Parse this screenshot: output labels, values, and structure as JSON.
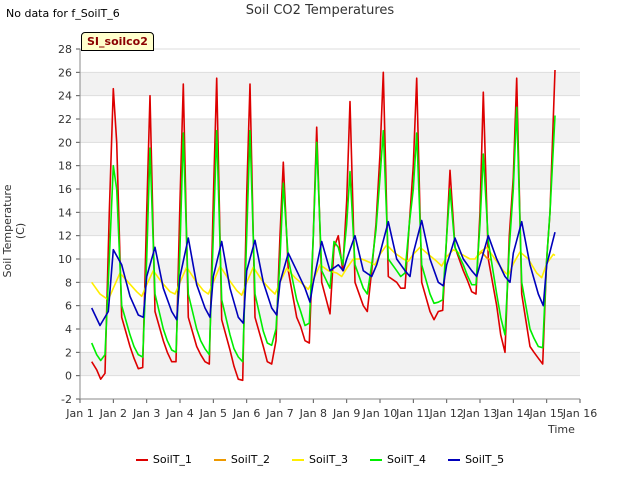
{
  "header": {
    "no_data_text": "No data for f_SoilT_6",
    "title": "Soil CO2 Temperatures",
    "site_badge": "SI_soilco2"
  },
  "chart_data": {
    "type": "line",
    "title": "Soil CO2 Temperatures",
    "xlabel": "Time",
    "ylabel": "Soil Temperature (C)",
    "xlim": [
      1,
      16
    ],
    "ylim": [
      -2,
      28
    ],
    "xticks": [
      1,
      2,
      3,
      4,
      5,
      6,
      7,
      8,
      9,
      10,
      11,
      12,
      13,
      14,
      15,
      16
    ],
    "xtick_labels": [
      "Jan 1",
      "Jan 2",
      "Jan 3",
      "Jan 4",
      "Jan 5",
      "Jan 6",
      "Jan 7",
      "Jan 8",
      "Jan 9",
      "Jan 10",
      "Jan 11",
      "Jan 12",
      "Jan 13",
      "Jan 14",
      "Jan 15",
      "Jan 16"
    ],
    "yticks": [
      -2,
      0,
      2,
      4,
      6,
      8,
      10,
      12,
      14,
      16,
      18,
      20,
      22,
      24,
      26,
      28
    ],
    "grid": true,
    "legend_position": "bottom",
    "series": [
      {
        "name": "SoilT_1",
        "color": "#dd0000",
        "x": [
          1.35,
          1.5,
          1.62,
          1.75,
          1.88,
          2.0,
          2.1,
          2.25,
          2.5,
          2.62,
          2.75,
          2.88,
          3.0,
          3.1,
          3.25,
          3.5,
          3.62,
          3.75,
          3.88,
          4.0,
          4.1,
          4.25,
          4.5,
          4.62,
          4.75,
          4.88,
          5.0,
          5.1,
          5.25,
          5.5,
          5.62,
          5.75,
          5.88,
          6.0,
          6.1,
          6.25,
          6.5,
          6.62,
          6.75,
          6.88,
          7.0,
          7.1,
          7.25,
          7.5,
          7.62,
          7.75,
          7.88,
          8.0,
          8.1,
          8.25,
          8.5,
          8.62,
          8.75,
          8.88,
          9.0,
          9.1,
          9.25,
          9.5,
          9.62,
          9.75,
          9.88,
          10.0,
          10.1,
          10.25,
          10.5,
          10.62,
          10.75,
          10.88,
          11.0,
          11.1,
          11.25,
          11.5,
          11.62,
          11.75,
          11.88,
          12.0,
          12.1,
          12.25,
          12.5,
          12.62,
          12.75,
          12.88,
          13.0,
          13.1,
          13.25,
          13.5,
          13.62,
          13.75,
          13.88,
          14.0,
          14.1,
          14.25,
          14.5,
          14.62,
          14.75,
          14.88,
          15.0,
          15.1,
          15.25
        ],
        "y": [
          1.2,
          0.5,
          -0.3,
          0.2,
          14.0,
          24.6,
          20.0,
          5.0,
          2.5,
          1.5,
          0.6,
          0.7,
          14.0,
          24.0,
          5.5,
          3.0,
          2.0,
          1.2,
          1.2,
          15.0,
          25.0,
          5.0,
          2.5,
          1.8,
          1.2,
          1.0,
          15.0,
          25.5,
          4.8,
          2.2,
          0.8,
          -0.3,
          -0.4,
          15.5,
          25.0,
          5.0,
          2.5,
          1.2,
          1.0,
          3.0,
          12.0,
          18.3,
          9.0,
          5.0,
          4.2,
          3.0,
          2.8,
          12.0,
          21.3,
          8.0,
          5.3,
          11.0,
          12.0,
          9.0,
          15.0,
          23.5,
          8.0,
          6.0,
          5.5,
          9.0,
          13.0,
          19.0,
          26.0,
          8.5,
          8.0,
          7.5,
          7.5,
          13.0,
          18.0,
          25.5,
          8.0,
          5.5,
          4.8,
          5.5,
          5.6,
          12.0,
          17.6,
          11.0,
          9.0,
          8.2,
          7.2,
          7.0,
          14.0,
          24.3,
          10.0,
          6.0,
          3.5,
          2.0,
          12.0,
          17.0,
          25.5,
          7.0,
          2.5,
          2.0,
          1.5,
          1.0,
          10.0,
          14.0,
          26.2
        ]
      },
      {
        "name": "SoilT_2",
        "color": "#ee9900",
        "x": [
          12.9,
          13.05,
          13.2,
          13.35
        ],
        "y": [
          10.2,
          10.6,
          10.1,
          9.9
        ]
      },
      {
        "name": "SoilT_3",
        "color": "#ffee00",
        "x": [
          1.35,
          1.6,
          1.85,
          2.0,
          2.2,
          2.45,
          2.7,
          2.85,
          3.0,
          3.2,
          3.45,
          3.7,
          3.85,
          4.0,
          4.2,
          4.45,
          4.7,
          4.85,
          5.0,
          5.2,
          5.45,
          5.7,
          5.85,
          6.0,
          6.2,
          6.45,
          6.7,
          6.85,
          7.0,
          7.2,
          7.45,
          7.7,
          7.85,
          8.0,
          8.2,
          8.45,
          8.7,
          8.85,
          9.0,
          9.2,
          9.45,
          9.7,
          9.85,
          10.0,
          10.2,
          10.45,
          10.7,
          10.85,
          11.0,
          11.2,
          11.45,
          11.7,
          11.85,
          12.0,
          12.2,
          12.45,
          12.7,
          12.85,
          13.0,
          13.2,
          13.45,
          13.7,
          13.85,
          14.0,
          14.2,
          14.45,
          14.7,
          14.85,
          15.0,
          15.2,
          15.25
        ],
        "y": [
          8.0,
          7.0,
          6.5,
          7.5,
          8.8,
          8.0,
          7.2,
          6.8,
          7.8,
          9.0,
          8.0,
          7.2,
          7.0,
          8.0,
          9.3,
          8.2,
          7.3,
          7.0,
          8.0,
          9.4,
          8.3,
          7.3,
          6.9,
          8.0,
          9.3,
          8.2,
          7.4,
          7.0,
          8.0,
          9.2,
          8.4,
          7.8,
          7.4,
          8.2,
          9.5,
          9.0,
          8.8,
          8.5,
          9.2,
          10.0,
          10.0,
          9.7,
          9.5,
          10.4,
          11.2,
          10.5,
          10.0,
          9.8,
          10.4,
          11.0,
          10.4,
          9.8,
          9.4,
          10.2,
          10.8,
          10.4,
          10.0,
          10.0,
          10.6,
          11.0,
          10.0,
          9.0,
          8.6,
          9.6,
          10.6,
          10.0,
          8.8,
          8.4,
          9.6,
          10.4,
          10.3
        ]
      },
      {
        "name": "SoilT_4",
        "color": "#00ee00",
        "x": [
          1.35,
          1.5,
          1.62,
          1.75,
          1.88,
          2.0,
          2.1,
          2.25,
          2.5,
          2.62,
          2.75,
          2.88,
          3.0,
          3.1,
          3.25,
          3.5,
          3.62,
          3.75,
          3.88,
          4.0,
          4.1,
          4.25,
          4.5,
          4.62,
          4.75,
          4.88,
          5.0,
          5.1,
          5.25,
          5.5,
          5.62,
          5.75,
          5.88,
          6.0,
          6.1,
          6.25,
          6.5,
          6.62,
          6.75,
          6.88,
          7.0,
          7.1,
          7.25,
          7.5,
          7.62,
          7.75,
          7.88,
          8.0,
          8.1,
          8.25,
          8.5,
          8.62,
          8.75,
          8.88,
          9.0,
          9.1,
          9.25,
          9.5,
          9.62,
          9.75,
          9.88,
          10.0,
          10.1,
          10.25,
          10.5,
          10.62,
          10.75,
          10.88,
          11.0,
          11.1,
          11.25,
          11.5,
          11.62,
          11.75,
          11.88,
          12.0,
          12.1,
          12.25,
          12.5,
          12.62,
          12.75,
          12.88,
          13.0,
          13.1,
          13.25,
          13.5,
          13.62,
          13.75,
          13.88,
          14.0,
          14.1,
          14.25,
          14.5,
          14.62,
          14.75,
          14.88,
          15.0,
          15.1,
          15.25
        ],
        "y": [
          2.8,
          1.8,
          1.3,
          1.8,
          10.0,
          18.0,
          16.0,
          6.0,
          3.5,
          2.5,
          1.8,
          1.6,
          10.0,
          19.5,
          7.0,
          4.0,
          3.0,
          2.2,
          2.0,
          11.0,
          20.8,
          7.0,
          4.0,
          3.0,
          2.3,
          1.8,
          12.0,
          21.0,
          6.5,
          3.5,
          2.3,
          1.6,
          1.2,
          12.0,
          21.0,
          7.0,
          3.8,
          2.8,
          2.6,
          4.0,
          10.0,
          16.5,
          10.0,
          6.5,
          5.5,
          4.3,
          4.5,
          12.0,
          20.0,
          9.0,
          7.5,
          11.5,
          11.0,
          9.5,
          13.0,
          17.5,
          9.5,
          7.5,
          7.0,
          9.5,
          12.5,
          17.0,
          21.0,
          10.0,
          9.0,
          8.5,
          8.8,
          13.0,
          16.0,
          20.8,
          9.5,
          7.0,
          6.2,
          6.3,
          6.5,
          12.0,
          16.0,
          11.0,
          9.5,
          8.6,
          7.8,
          7.8,
          13.0,
          19.0,
          11.5,
          7.0,
          5.0,
          3.5,
          11.0,
          16.0,
          23.0,
          8.0,
          4.0,
          3.2,
          2.5,
          2.4,
          10.0,
          14.0,
          22.3
        ]
      },
      {
        "name": "SoilT_5",
        "color": "#0000bb",
        "x": [
          1.35,
          1.6,
          1.85,
          2.0,
          2.25,
          2.5,
          2.75,
          2.9,
          3.0,
          3.25,
          3.5,
          3.75,
          3.9,
          4.0,
          4.25,
          4.5,
          4.75,
          4.9,
          5.0,
          5.25,
          5.5,
          5.75,
          5.9,
          6.0,
          6.25,
          6.5,
          6.75,
          6.9,
          7.0,
          7.25,
          7.5,
          7.75,
          7.9,
          8.0,
          8.25,
          8.5,
          8.75,
          8.9,
          9.0,
          9.25,
          9.5,
          9.75,
          9.9,
          10.0,
          10.25,
          10.5,
          10.75,
          10.9,
          11.0,
          11.25,
          11.5,
          11.75,
          11.9,
          12.0,
          12.25,
          12.5,
          12.75,
          12.9,
          13.0,
          13.25,
          13.5,
          13.75,
          13.9,
          14.0,
          14.25,
          14.5,
          14.75,
          14.9,
          15.0,
          15.25
        ],
        "y": [
          5.8,
          4.3,
          5.5,
          10.8,
          9.5,
          6.8,
          5.2,
          5.0,
          8.5,
          11.0,
          7.5,
          5.5,
          4.8,
          8.5,
          11.8,
          7.8,
          5.8,
          5.0,
          8.5,
          11.5,
          7.5,
          5.0,
          4.5,
          9.0,
          11.6,
          8.0,
          5.8,
          5.2,
          8.0,
          10.5,
          9.0,
          7.5,
          6.3,
          8.0,
          11.5,
          9.0,
          9.5,
          9.0,
          10.0,
          12.0,
          9.0,
          8.5,
          9.5,
          10.5,
          13.2,
          10.0,
          9.0,
          8.5,
          10.5,
          13.3,
          10.0,
          8.0,
          7.7,
          9.5,
          11.8,
          10.0,
          9.0,
          8.5,
          9.5,
          12.0,
          10.0,
          8.5,
          8.0,
          10.5,
          13.2,
          9.5,
          7.0,
          6.0,
          9.5,
          12.3
        ]
      }
    ]
  },
  "legend": {
    "items": [
      "SoilT_1",
      "SoilT_2",
      "SoilT_3",
      "SoilT_4",
      "SoilT_5"
    ]
  }
}
